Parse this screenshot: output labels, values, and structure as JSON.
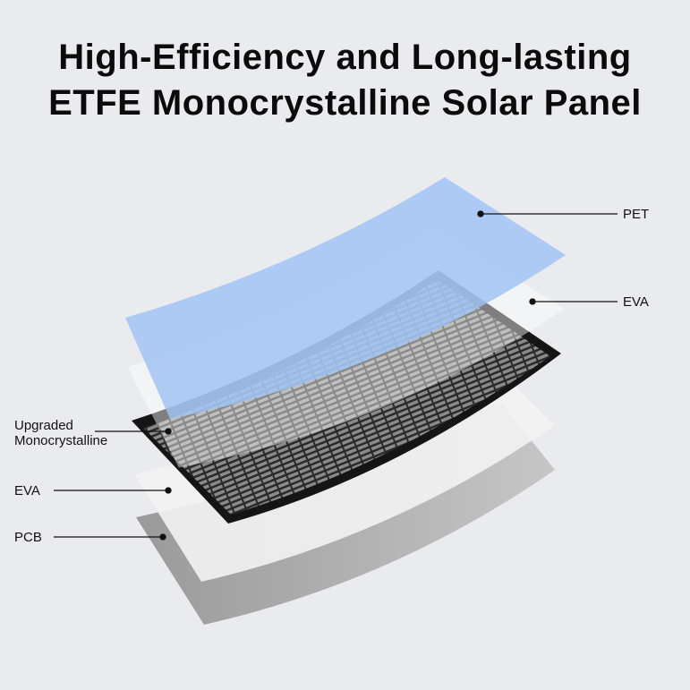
{
  "title": {
    "line1": "High-Efficiency and Long-lasting",
    "line2": "ETFE Monocrystalline Solar Panel"
  },
  "layers": [
    {
      "label": "PET",
      "color": "#a6c6f3"
    },
    {
      "label": "EVA",
      "color": "#f4f4f4"
    },
    {
      "label": "Upgraded Monocrystalline",
      "color": "#1a1a1a"
    },
    {
      "label": "EVA",
      "color": "#f2f2f2"
    },
    {
      "label": "PCB",
      "color": "#a9a9a9"
    }
  ]
}
